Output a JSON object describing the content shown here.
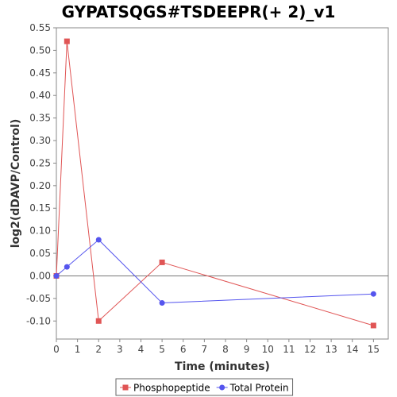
{
  "chart_data": {
    "type": "line",
    "title": "GYPATSQGS#TSDEEPR(+ 2)_v1",
    "xlabel": "Time (minutes)",
    "ylabel": "log2(dDAVP/Control)",
    "xlim": [
      0,
      15.7
    ],
    "ylim": [
      -0.14,
      0.55
    ],
    "xticks": [
      0,
      1,
      2,
      3,
      4,
      5,
      6,
      7,
      8,
      9,
      10,
      11,
      12,
      13,
      14,
      15
    ],
    "yticks": [
      -0.1,
      -0.05,
      0.0,
      0.05,
      0.1,
      0.15,
      0.2,
      0.25,
      0.3,
      0.35,
      0.4,
      0.45,
      0.5,
      0.55
    ],
    "zero_line": true,
    "legend_position": "bottom-center",
    "series": [
      {
        "name": "Phosphopeptide",
        "marker": "square",
        "color": "#e05555",
        "x": [
          0,
          0.5,
          2,
          5,
          15
        ],
        "y": [
          0.0,
          0.52,
          -0.1,
          0.03,
          -0.11
        ]
      },
      {
        "name": "Total Protein",
        "marker": "circle",
        "color": "#5555ee",
        "x": [
          0,
          0.5,
          2,
          5,
          15
        ],
        "y": [
          0.0,
          0.02,
          0.08,
          -0.06,
          -0.04
        ]
      }
    ]
  }
}
